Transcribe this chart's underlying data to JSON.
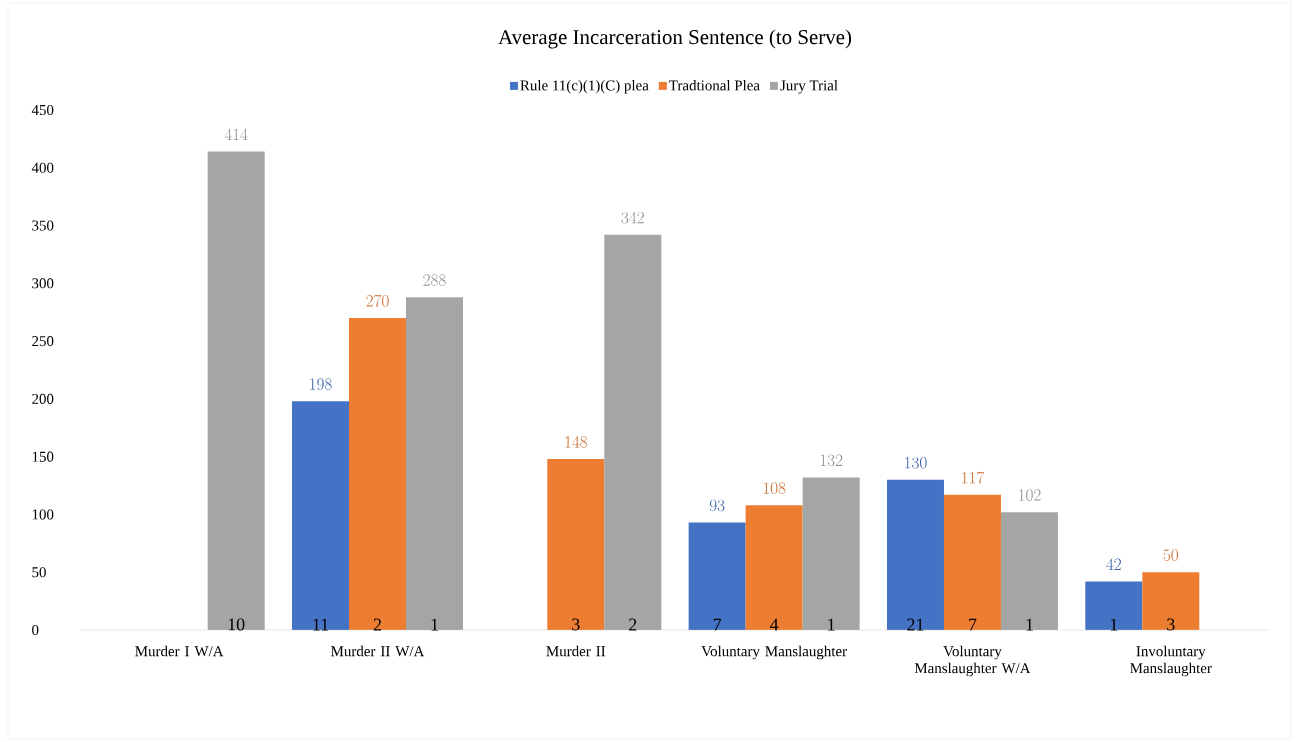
{
  "chart_data": {
    "type": "bar",
    "title": "Average Incarceration Sentence (to Serve)",
    "categories": [
      "Murder I W/A",
      "Murder II W/A",
      "Murder II",
      "Voluntary Manslaughter",
      "Voluntary Manslaughter W/A",
      "Involuntary Manslaughter"
    ],
    "series": [
      {
        "name": "Rule 11(c)(1)(C) plea",
        "color": "#4472c4",
        "values": [
          null,
          198,
          null,
          93,
          130,
          42
        ]
      },
      {
        "name": "Tradtional Plea",
        "color": "#ed7d31",
        "values": [
          null,
          270,
          148,
          108,
          117,
          50
        ]
      },
      {
        "name": "Jury Trial",
        "color": "#a5a5a5",
        "values": [
          414,
          288,
          342,
          132,
          102,
          null
        ]
      }
    ],
    "ylim": [
      0,
      450
    ],
    "yticks": [
      0,
      50,
      100,
      150,
      200,
      250,
      300,
      350,
      400,
      450
    ],
    "data_labels": true,
    "legend": "top",
    "grid": false,
    "annotations": [
      "10",
      "11",
      "2",
      "1",
      "3",
      "2",
      "7",
      "4",
      "1",
      "21",
      "7",
      "1",
      "1",
      "3"
    ]
  }
}
